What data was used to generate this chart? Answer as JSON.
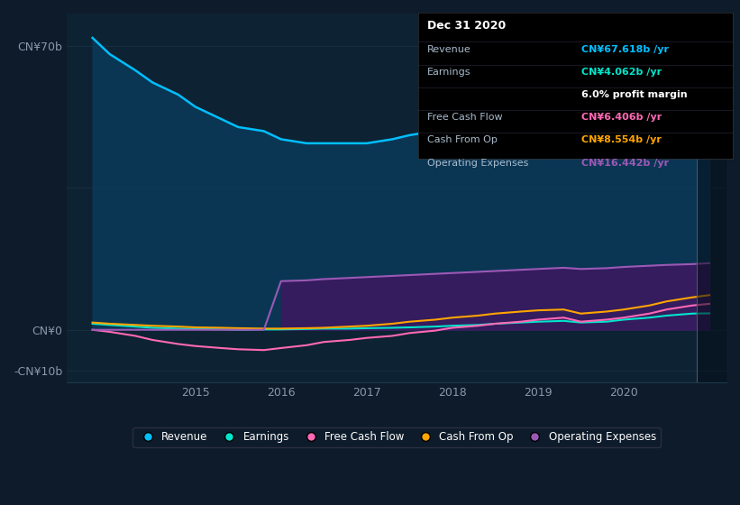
{
  "bg_color": "#0d1b2a",
  "plot_bg_color": "#0d2233",
  "ylim": [
    -13,
    78
  ],
  "xlim": [
    2013.5,
    2021.2
  ],
  "yticks": [
    -10,
    0,
    70
  ],
  "ytick_labels": [
    "-CN¥10b",
    "CN¥0",
    "CN¥70b"
  ],
  "xticks": [
    2015,
    2016,
    2017,
    2018,
    2019,
    2020
  ],
  "years": [
    2013.8,
    2014.0,
    2014.3,
    2014.5,
    2014.8,
    2015.0,
    2015.3,
    2015.5,
    2015.8,
    2016.0,
    2016.3,
    2016.5,
    2016.8,
    2017.0,
    2017.3,
    2017.5,
    2017.8,
    2018.0,
    2018.3,
    2018.5,
    2018.8,
    2019.0,
    2019.3,
    2019.5,
    2019.8,
    2020.0,
    2020.3,
    2020.5,
    2020.8,
    2021.0
  ],
  "revenue": [
    72,
    68,
    64,
    61,
    58,
    55,
    52,
    50,
    49,
    47,
    46,
    46,
    46,
    46,
    47,
    48,
    49,
    51,
    53,
    54,
    54,
    53,
    52,
    48,
    48,
    50,
    56,
    62,
    67,
    67.6
  ],
  "earnings": [
    1.5,
    1.2,
    0.8,
    0.5,
    0.3,
    0.2,
    0.1,
    0.0,
    0.1,
    0.1,
    0.2,
    0.3,
    0.3,
    0.4,
    0.5,
    0.6,
    0.8,
    1.0,
    1.2,
    1.5,
    1.8,
    2.0,
    2.2,
    1.8,
    2.0,
    2.5,
    3.0,
    3.5,
    4.0,
    4.062
  ],
  "free_cash_flow": [
    0.0,
    -0.5,
    -1.5,
    -2.5,
    -3.5,
    -4.0,
    -4.5,
    -4.8,
    -5.0,
    -4.5,
    -3.8,
    -3.0,
    -2.5,
    -2.0,
    -1.5,
    -0.8,
    -0.2,
    0.5,
    1.0,
    1.5,
    2.0,
    2.5,
    3.0,
    2.0,
    2.5,
    3.0,
    4.0,
    5.0,
    6.0,
    6.406
  ],
  "cash_from_op": [
    1.8,
    1.5,
    1.2,
    1.0,
    0.8,
    0.6,
    0.5,
    0.4,
    0.3,
    0.3,
    0.4,
    0.5,
    0.8,
    1.0,
    1.5,
    2.0,
    2.5,
    3.0,
    3.5,
    4.0,
    4.5,
    4.8,
    5.0,
    4.0,
    4.5,
    5.0,
    6.0,
    7.0,
    8.0,
    8.554
  ],
  "op_expenses": [
    0.0,
    0.0,
    0.0,
    0.0,
    0.0,
    0.0,
    0.0,
    0.0,
    0.0,
    12.0,
    12.2,
    12.5,
    12.8,
    13.0,
    13.3,
    13.5,
    13.8,
    14.0,
    14.3,
    14.5,
    14.8,
    15.0,
    15.3,
    15.0,
    15.2,
    15.5,
    15.8,
    16.0,
    16.2,
    16.442
  ],
  "revenue_color": "#00bfff",
  "revenue_fill_color": "#0a3a5a",
  "earnings_color": "#00e5cc",
  "free_cash_flow_color": "#ff69b4",
  "cash_from_op_color": "#ffa500",
  "op_expenses_color": "#9b59b6",
  "op_expenses_fill_color": "#3a1a60",
  "tooltip_bg": "#000000",
  "tooltip_title": "Dec 31 2020",
  "tooltip_revenue_val": "CN¥67.618b /yr",
  "tooltip_earnings_val": "CN¥4.062b /yr",
  "tooltip_profit_margin": "6.0% profit margin",
  "tooltip_fcf_val": "CN¥6.406b /yr",
  "tooltip_cashop_val": "CN¥8.554b /yr",
  "tooltip_opex_val": "CN¥16.442b /yr",
  "legend_items": [
    "Revenue",
    "Earnings",
    "Free Cash Flow",
    "Cash From Op",
    "Operating Expenses"
  ],
  "legend_colors": [
    "#00bfff",
    "#00e5cc",
    "#ff69b4",
    "#ffa500",
    "#9b59b6"
  ],
  "vertical_line_x": 2020.85
}
